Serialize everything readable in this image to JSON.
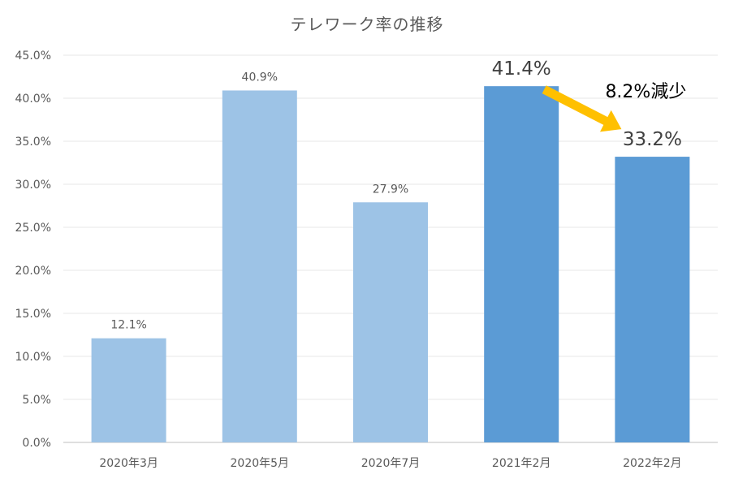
{
  "chart_data": {
    "type": "bar",
    "title": "テレワーク率の推移",
    "xlabel": "",
    "ylabel": "",
    "categories": [
      "2020年3月",
      "2020年5月",
      "2020年7月",
      "2021年2月",
      "2022年2月"
    ],
    "values": [
      12.1,
      40.9,
      27.9,
      41.4,
      33.2
    ],
    "data_labels": [
      "12.1%",
      "40.9%",
      "27.9%",
      "41.4%",
      "33.2%"
    ],
    "y_ticks": [
      "0.0%",
      "5.0%",
      "10.0%",
      "15.0%",
      "20.0%",
      "25.0%",
      "30.0%",
      "35.0%",
      "40.0%",
      "45.0%"
    ],
    "ylim": [
      0,
      45
    ],
    "grid": true,
    "legend": "none",
    "annotation": {
      "text": "8.2%減少",
      "from_category": "2021年2月",
      "to_category": "2022年2月"
    },
    "colors": {
      "light_bar": "#9dc3e6",
      "dark_bar": "#5b9bd5",
      "arrow": "#ffc000",
      "gridline": "#e7e7e7",
      "axis_line": "#bfbfbf",
      "text": "#595959",
      "annotation_text": "#000000"
    },
    "bar_color_keys": [
      "light_bar",
      "light_bar",
      "light_bar",
      "dark_bar",
      "dark_bar"
    ],
    "emphasized_labels": [
      false,
      false,
      false,
      true,
      true
    ]
  }
}
